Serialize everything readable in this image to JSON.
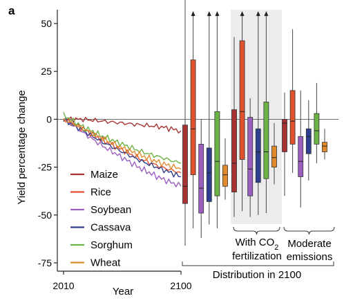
{
  "panel_label": "a",
  "chart_data": {
    "type": "line",
    "panel": "a",
    "title": "",
    "ylabel": "Yield percentage change",
    "xlabel": "Year",
    "ylim": [
      -78,
      56
    ],
    "yticks": [
      50,
      25,
      0,
      -25,
      -50,
      -75
    ],
    "reference_line": 0,
    "grid": false,
    "legend_position": "bottom-left",
    "timeseries": {
      "x_ticks": [
        "2010",
        "2100"
      ],
      "x_range": [
        2010,
        2100
      ],
      "series": [
        {
          "name": "Maize",
          "color": "#a83232",
          "values": [
            [
              2010,
              0
            ],
            [
              2025,
              0
            ],
            [
              2040,
              -1
            ],
            [
              2055,
              -2
            ],
            [
              2070,
              -3
            ],
            [
              2085,
              -4
            ],
            [
              2100,
              -6
            ]
          ]
        },
        {
          "name": "Rice",
          "color": "#e0522d",
          "values": [
            [
              2010,
              0
            ],
            [
              2025,
              -5
            ],
            [
              2040,
              -11
            ],
            [
              2055,
              -16
            ],
            [
              2070,
              -21
            ],
            [
              2085,
              -25
            ],
            [
              2100,
              -28
            ]
          ]
        },
        {
          "name": "Soybean",
          "color": "#9b5fc0",
          "values": [
            [
              2010,
              0
            ],
            [
              2025,
              -7
            ],
            [
              2040,
              -14
            ],
            [
              2055,
              -20
            ],
            [
              2070,
              -26
            ],
            [
              2085,
              -31
            ],
            [
              2100,
              -35
            ]
          ]
        },
        {
          "name": "Cassava",
          "color": "#2f3f8f",
          "values": [
            [
              2010,
              0
            ],
            [
              2025,
              -6
            ],
            [
              2040,
              -12
            ],
            [
              2055,
              -17
            ],
            [
              2070,
              -22
            ],
            [
              2085,
              -26
            ],
            [
              2100,
              -30
            ]
          ]
        },
        {
          "name": "Sorghum",
          "color": "#6ab344",
          "values": [
            [
              2010,
              2
            ],
            [
              2025,
              -4
            ],
            [
              2040,
              -9
            ],
            [
              2055,
              -13
            ],
            [
              2070,
              -17
            ],
            [
              2085,
              -20
            ],
            [
              2100,
              -23
            ]
          ]
        },
        {
          "name": "Wheat",
          "color": "#e08a2b",
          "values": [
            [
              2010,
              0
            ],
            [
              2025,
              -5
            ],
            [
              2040,
              -10
            ],
            [
              2055,
              -15
            ],
            [
              2070,
              -19
            ],
            [
              2085,
              -23
            ],
            [
              2100,
              -26
            ]
          ]
        }
      ]
    },
    "distribution_2100": {
      "type": "box",
      "xlabel": "Distribution in 2100",
      "groups": [
        {
          "label": "",
          "shaded": false,
          "boxes": [
            {
              "crop": "Maize",
              "whisker_low": -66,
              "q1": -44,
              "median": -35,
              "q3": -3,
              "whisker_high": 73
            },
            {
              "crop": "Rice",
              "whisker_low": -57,
              "q1": -29,
              "median": -5,
              "q3": 31,
              "whisker_high": 55,
              "arrow_up": true
            },
            {
              "crop": "Soybean",
              "whisker_low": -62,
              "q1": -49,
              "median": -36,
              "q3": -13,
              "whisker_high": 0
            },
            {
              "crop": "Cassava",
              "whisker_low": -55,
              "q1": -43,
              "median": -28,
              "q3": -15,
              "whisker_high": 55,
              "arrow_up": true
            },
            {
              "crop": "Sorghum",
              "whisker_low": -57,
              "q1": -40,
              "median": -22,
              "q3": 4,
              "whisker_high": 55,
              "arrow_up": true
            },
            {
              "crop": "Wheat",
              "whisker_low": -42,
              "q1": -35,
              "median": -29,
              "q3": -24,
              "whisker_high": -10
            }
          ]
        },
        {
          "label": "With CO2 fertilization",
          "shaded": true,
          "boxes": [
            {
              "crop": "Maize",
              "whisker_low": -51,
              "q1": -38,
              "median": -23,
              "q3": 5,
              "whisker_high": 43
            },
            {
              "crop": "Rice",
              "whisker_low": -48,
              "q1": -21,
              "median": 4,
              "q3": 41,
              "whisker_high": 55,
              "arrow_up": true
            },
            {
              "crop": "Soybean",
              "whisker_low": -51,
              "q1": -40,
              "median": -26,
              "q3": 1,
              "whisker_high": 11
            },
            {
              "crop": "Cassava",
              "whisker_low": -50,
              "q1": -33,
              "median": -17,
              "q3": -5,
              "whisker_high": 55,
              "arrow_up": true
            },
            {
              "crop": "Sorghum",
              "whisker_low": -49,
              "q1": -31,
              "median": -17,
              "q3": 9,
              "whisker_high": 55,
              "arrow_up": true
            },
            {
              "crop": "Wheat",
              "whisker_low": -34,
              "q1": -25,
              "median": -20,
              "q3": -14,
              "whisker_high": -2
            }
          ]
        },
        {
          "label": "Moderate emissions",
          "shaded": false,
          "boxes": [
            {
              "crop": "Maize",
              "whisker_low": -40,
              "q1": -17,
              "median": -2,
              "q3": 0,
              "whisker_high": 14
            },
            {
              "crop": "Rice",
              "whisker_low": -28,
              "q1": -13,
              "median": -1,
              "q3": 15,
              "whisker_high": 47
            },
            {
              "crop": "Soybean",
              "whisker_low": -46,
              "q1": -30,
              "median": -22,
              "q3": -9,
              "whisker_high": 15
            },
            {
              "crop": "Cassava",
              "whisker_low": -32,
              "q1": -18,
              "median": -9,
              "q3": -5,
              "whisker_high": 10
            },
            {
              "crop": "Sorghum",
              "whisker_low": -23,
              "q1": -13,
              "median": -6,
              "q3": 3,
              "whisker_high": 19
            },
            {
              "crop": "Wheat",
              "whisker_low": -21,
              "q1": -17,
              "median": -14,
              "q3": -12,
              "whisker_high": -5
            }
          ]
        }
      ]
    }
  }
}
